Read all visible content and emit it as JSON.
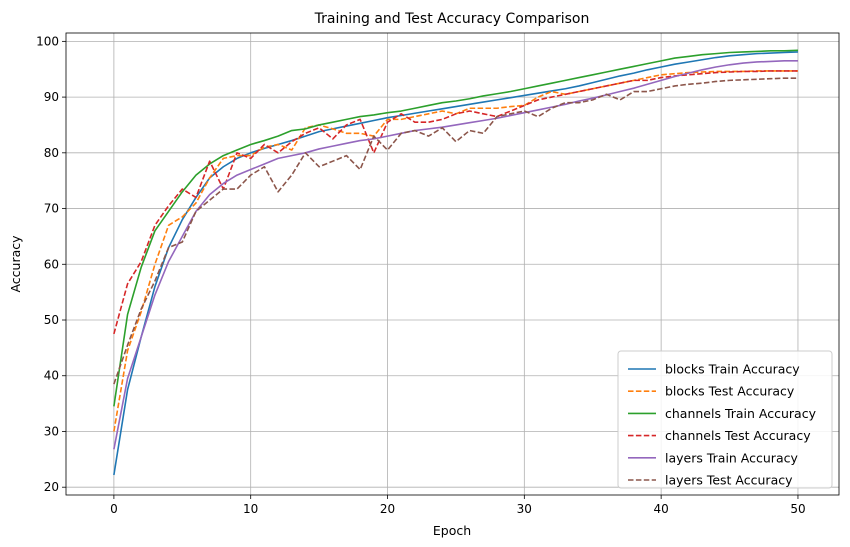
{
  "chart_data": {
    "type": "line",
    "title": "Training and Test Accuracy Comparison",
    "xlabel": "Epoch",
    "ylabel": "Accuracy",
    "xlim": [
      -3.5,
      53
    ],
    "ylim": [
      18.6,
      101.5
    ],
    "xticks": [
      0,
      10,
      20,
      30,
      40,
      50
    ],
    "yticks": [
      20,
      30,
      40,
      50,
      60,
      70,
      80,
      90,
      100
    ],
    "grid": true,
    "legend_position": "lower right",
    "x": [
      0,
      1,
      2,
      3,
      4,
      5,
      6,
      7,
      8,
      9,
      10,
      11,
      12,
      13,
      14,
      15,
      16,
      17,
      18,
      19,
      20,
      21,
      22,
      23,
      24,
      25,
      26,
      27,
      28,
      29,
      30,
      31,
      32,
      33,
      34,
      35,
      36,
      37,
      38,
      39,
      40,
      41,
      42,
      43,
      44,
      45,
      46,
      47,
      48,
      49,
      50
    ],
    "series": [
      {
        "name": "blocks Train Accuracy",
        "color": "#1f77b4",
        "dash": "solid",
        "values": [
          22.2,
          37.5,
          47.0,
          56.0,
          63.0,
          68.0,
          72.0,
          75.5,
          77.5,
          79.0,
          80.0,
          80.8,
          81.5,
          82.2,
          83.0,
          83.8,
          84.3,
          84.8,
          85.3,
          85.8,
          86.3,
          86.7,
          87.1,
          87.5,
          87.9,
          88.3,
          88.7,
          89.1,
          89.5,
          89.9,
          90.3,
          90.7,
          91.1,
          91.5,
          92.0,
          92.6,
          93.2,
          93.8,
          94.3,
          94.9,
          95.4,
          95.9,
          96.3,
          96.7,
          97.1,
          97.4,
          97.6,
          97.8,
          97.9,
          98.0,
          98.1
        ]
      },
      {
        "name": "blocks Test Accuracy",
        "color": "#ff7f0e",
        "dash": "dashed",
        "values": [
          30.0,
          44.5,
          51.5,
          60.0,
          67.0,
          68.5,
          71.0,
          75.5,
          79.0,
          79.5,
          79.5,
          81.0,
          81.5,
          80.5,
          84.5,
          85.0,
          84.3,
          83.5,
          83.5,
          83.0,
          86.0,
          86.0,
          86.5,
          87.0,
          87.5,
          87.0,
          88.0,
          88.0,
          88.0,
          88.3,
          88.5,
          90.0,
          91.0,
          90.5,
          91.0,
          91.5,
          92.0,
          92.5,
          93.0,
          93.5,
          94.0,
          94.2,
          94.4,
          94.5,
          94.6,
          94.6,
          94.6,
          94.7,
          94.7,
          94.7,
          94.7
        ]
      },
      {
        "name": "channels Train Accuracy",
        "color": "#2ca02c",
        "dash": "solid",
        "values": [
          34.5,
          51.0,
          59.5,
          66.0,
          69.5,
          73.0,
          76.0,
          78.0,
          79.5,
          80.5,
          81.5,
          82.2,
          83.0,
          84.0,
          84.3,
          85.0,
          85.5,
          86.0,
          86.5,
          86.8,
          87.2,
          87.5,
          88.0,
          88.5,
          89.0,
          89.3,
          89.7,
          90.2,
          90.6,
          91.0,
          91.5,
          92.0,
          92.5,
          93.0,
          93.5,
          94.0,
          94.5,
          95.0,
          95.5,
          96.0,
          96.5,
          97.0,
          97.3,
          97.6,
          97.8,
          98.0,
          98.1,
          98.2,
          98.3,
          98.3,
          98.4
        ]
      },
      {
        "name": "channels Test Accuracy",
        "color": "#d62728",
        "dash": "dashed",
        "values": [
          47.5,
          56.5,
          60.5,
          67.0,
          70.5,
          73.5,
          72.0,
          78.5,
          73.5,
          80.0,
          79.0,
          81.5,
          80.0,
          82.0,
          83.5,
          84.5,
          82.5,
          85.0,
          86.0,
          80.0,
          85.5,
          87.0,
          85.5,
          85.5,
          86.0,
          87.0,
          87.5,
          87.0,
          86.5,
          87.5,
          88.5,
          89.5,
          90.0,
          90.5,
          91.0,
          91.5,
          92.0,
          92.5,
          93.0,
          93.0,
          93.5,
          93.8,
          94.0,
          94.2,
          94.4,
          94.5,
          94.6,
          94.6,
          94.7,
          94.7,
          94.7
        ]
      },
      {
        "name": "layers Train Accuracy",
        "color": "#9467bd",
        "dash": "solid",
        "values": [
          26.8,
          39.5,
          47.0,
          54.5,
          60.5,
          65.0,
          69.5,
          72.5,
          74.5,
          76.0,
          77.0,
          78.0,
          79.0,
          79.5,
          80.0,
          80.7,
          81.2,
          81.7,
          82.2,
          82.5,
          83.0,
          83.5,
          84.0,
          84.3,
          84.6,
          85.0,
          85.4,
          85.8,
          86.2,
          86.7,
          87.2,
          87.7,
          88.2,
          88.7,
          89.3,
          89.8,
          90.4,
          91.0,
          91.6,
          92.3,
          93.0,
          93.7,
          94.3,
          94.9,
          95.4,
          95.8,
          96.1,
          96.3,
          96.4,
          96.5,
          96.5
        ]
      },
      {
        "name": "layers Test Accuracy",
        "color": "#8c564b",
        "dash": "dashed",
        "values": [
          38.5,
          45.5,
          52.0,
          57.0,
          63.0,
          64.0,
          69.5,
          71.5,
          73.5,
          73.5,
          76.0,
          77.5,
          73.0,
          76.0,
          80.0,
          77.5,
          78.5,
          79.5,
          77.0,
          83.0,
          80.5,
          83.5,
          84.0,
          83.0,
          84.5,
          82.0,
          84.0,
          83.5,
          86.5,
          87.0,
          87.5,
          86.5,
          88.0,
          89.0,
          89.0,
          89.5,
          90.5,
          89.5,
          91.0,
          91.0,
          91.5,
          92.0,
          92.3,
          92.5,
          92.8,
          93.0,
          93.1,
          93.2,
          93.3,
          93.4,
          93.4
        ]
      }
    ]
  }
}
